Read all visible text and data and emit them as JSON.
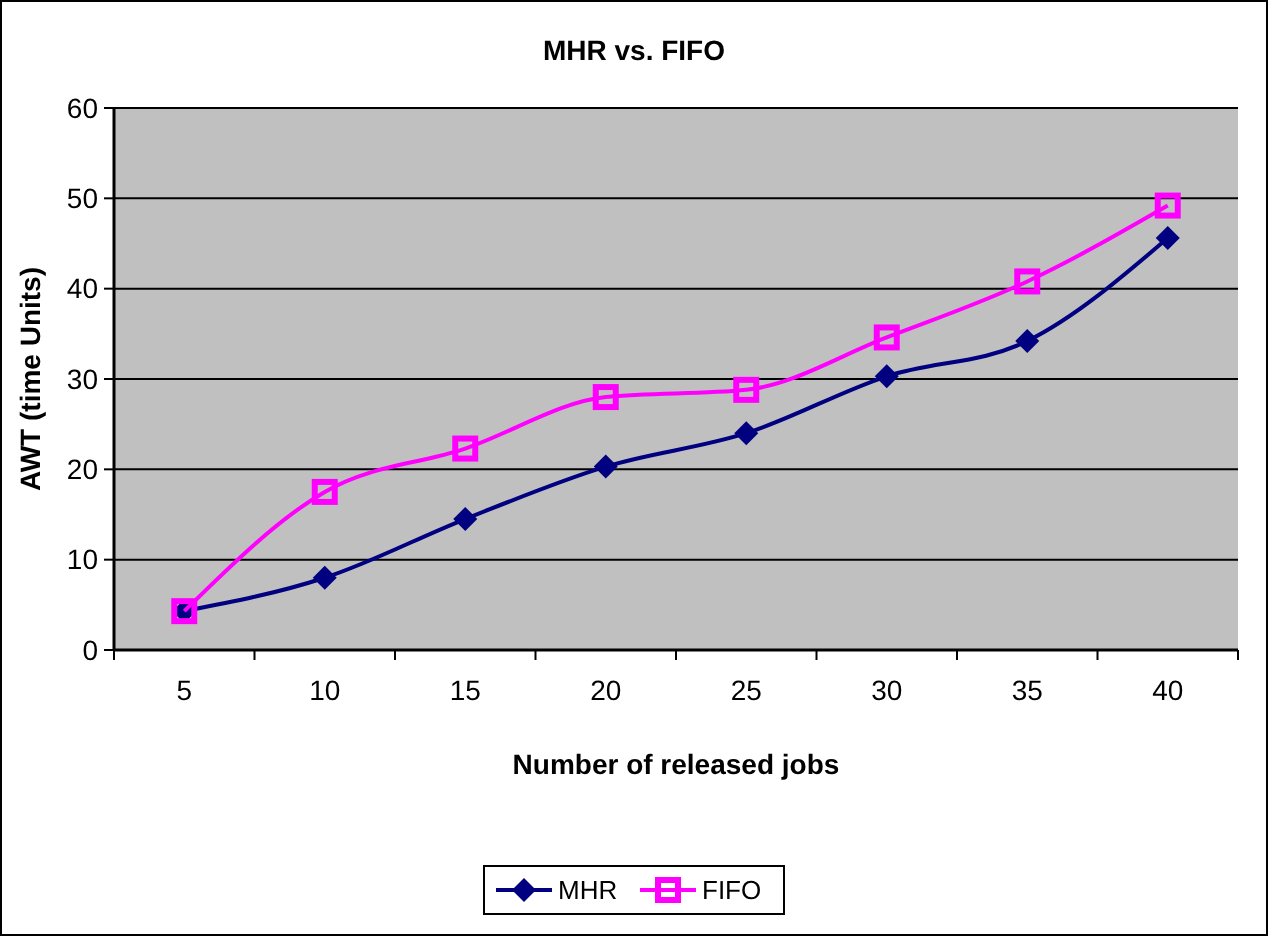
{
  "chart_data": {
    "type": "line",
    "title": "MHR vs. FIFO",
    "xlabel": "Number of released jobs",
    "ylabel": "AWT (time Units)",
    "categories": [
      "5",
      "10",
      "15",
      "20",
      "25",
      "30",
      "35",
      "40"
    ],
    "ylim": [
      0,
      60
    ],
    "yticks": [
      0,
      10,
      20,
      30,
      40,
      50,
      60
    ],
    "grid": "y",
    "legend": "bottom",
    "series": [
      {
        "name": "MHR",
        "color": "#000080",
        "marker": "diamond",
        "values": [
          4.3,
          8,
          14.5,
          20.3,
          24,
          30.3,
          34.2,
          45.6
        ]
      },
      {
        "name": "FIFO",
        "color": "#ff00ff",
        "marker": "square",
        "values": [
          4.3,
          17.5,
          22.3,
          28,
          28.8,
          34.6,
          40.8,
          49.2
        ]
      }
    ]
  }
}
